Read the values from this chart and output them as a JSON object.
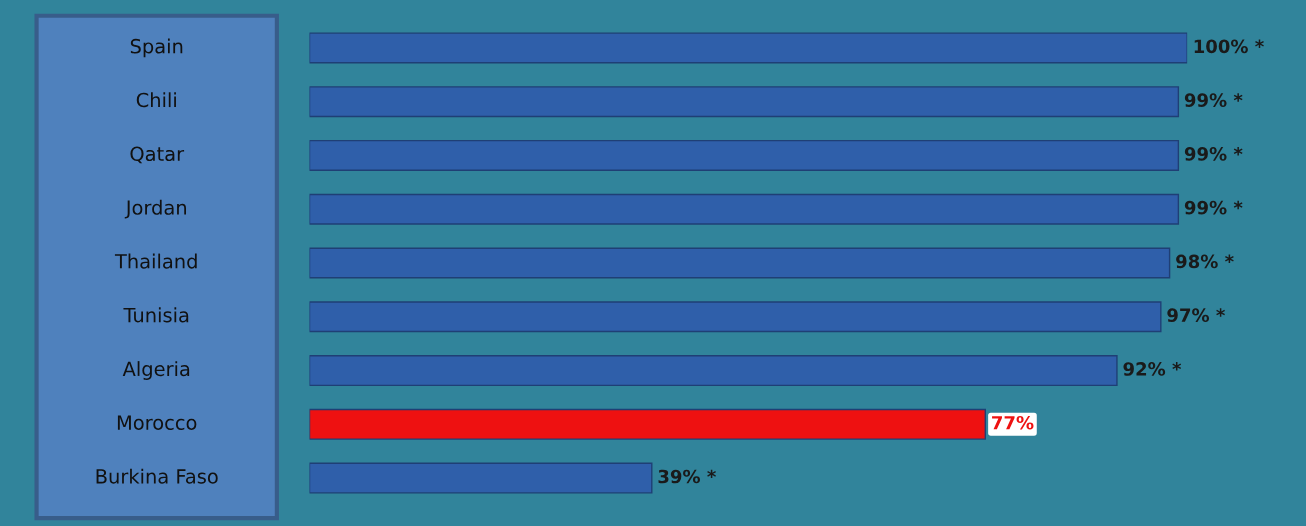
{
  "chart_data": {
    "type": "bar",
    "orientation": "horizontal",
    "categories": [
      "Spain",
      "Chili",
      "Qatar",
      "Jordan",
      "Thailand",
      "Tunisia",
      "Algeria",
      "Morocco",
      "Burkina Faso"
    ],
    "values": [
      100,
      99,
      99,
      99,
      98,
      97,
      92,
      77,
      39
    ],
    "value_labels": [
      "100% *",
      "99% *",
      "99% *",
      "99% *",
      "98% *",
      "97% *",
      "92% *",
      "77%",
      "39% *"
    ],
    "colors": [
      "#2f5faa",
      "#2f5faa",
      "#2f5faa",
      "#2f5faa",
      "#2f5faa",
      "#2f5faa",
      "#2f5faa",
      "#ee1111",
      "#2f5faa"
    ],
    "legend": false
  }
}
